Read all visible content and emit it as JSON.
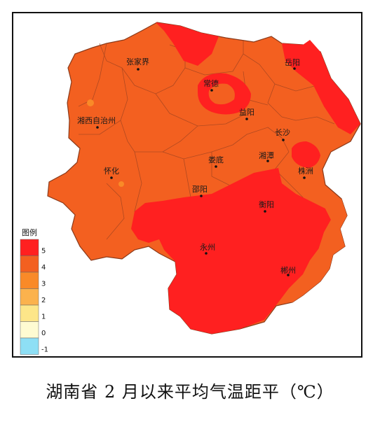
{
  "map": {
    "cities": [
      {
        "name": "张家界"
      },
      {
        "name": "常德"
      },
      {
        "name": "岳阳"
      },
      {
        "name": "湘西自治州"
      },
      {
        "name": "益阳"
      },
      {
        "name": "长沙"
      },
      {
        "name": "娄底"
      },
      {
        "name": "湘潭"
      },
      {
        "name": "怀化"
      },
      {
        "name": "株洲"
      },
      {
        "name": "邵阳"
      },
      {
        "name": "衡阳"
      },
      {
        "name": "永州"
      },
      {
        "name": "郴州"
      }
    ]
  },
  "legend": {
    "title": "图例",
    "ticks": [
      "5",
      "4",
      "3",
      "2",
      "1",
      "0",
      "-1"
    ],
    "colors": [
      "#ff2020",
      "#f36020",
      "#f98a28",
      "#fbb24d",
      "#fde689",
      "#fefbd2",
      "#8edff5"
    ]
  },
  "caption": "湖南省 2 月以来平均气温距平（℃）"
}
